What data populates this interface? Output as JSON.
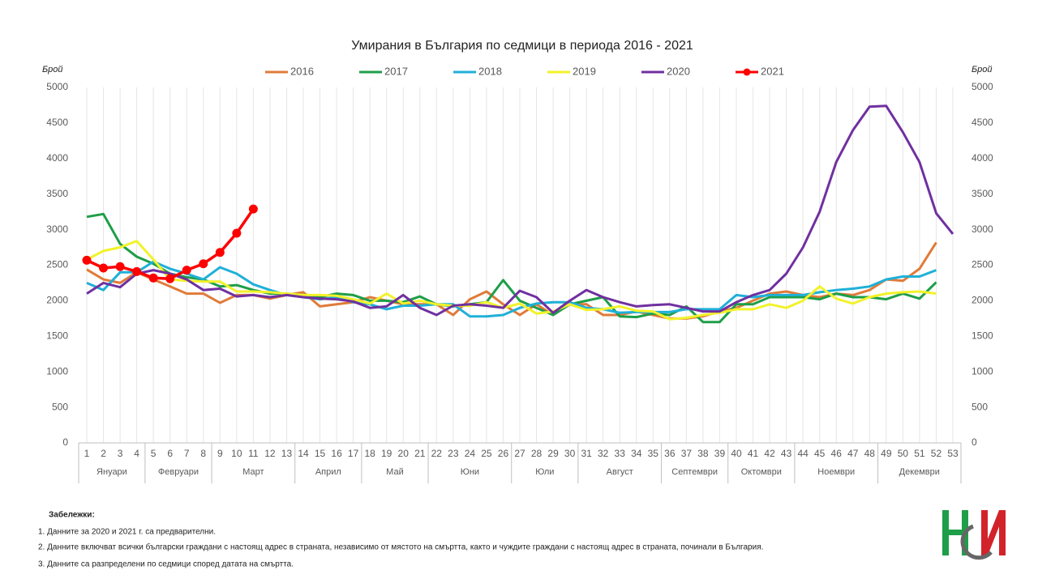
{
  "chart_data": {
    "type": "line",
    "title": "Умирания в България по седмици в периода 2016 - 2021",
    "y_label": "Брой",
    "y2_label": "Брой",
    "categories": [
      1,
      2,
      3,
      4,
      5,
      6,
      7,
      8,
      9,
      10,
      11,
      12,
      13,
      14,
      15,
      16,
      17,
      18,
      19,
      20,
      21,
      22,
      23,
      24,
      25,
      26,
      27,
      28,
      29,
      30,
      31,
      32,
      33,
      34,
      35,
      36,
      37,
      38,
      39,
      40,
      41,
      42,
      43,
      44,
      45,
      46,
      47,
      48,
      49,
      50,
      51,
      52,
      53
    ],
    "month_groups": [
      {
        "label": "Януари",
        "weeks": [
          1,
          4
        ]
      },
      {
        "label": "Февруари",
        "weeks": [
          5,
          8
        ]
      },
      {
        "label": "Март",
        "weeks": [
          9,
          13
        ]
      },
      {
        "label": "Април",
        "weeks": [
          14,
          17
        ]
      },
      {
        "label": "Май",
        "weeks": [
          18,
          21
        ]
      },
      {
        "label": "Юни",
        "weeks": [
          22,
          26
        ]
      },
      {
        "label": "Юли",
        "weeks": [
          27,
          30
        ]
      },
      {
        "label": "Август",
        "weeks": [
          31,
          35
        ]
      },
      {
        "label": "Септември",
        "weeks": [
          36,
          39
        ]
      },
      {
        "label": "Октомври",
        "weeks": [
          40,
          43
        ]
      },
      {
        "label": "Ноември",
        "weeks": [
          44,
          48
        ]
      },
      {
        "label": "Декември",
        "weeks": [
          49,
          53
        ]
      }
    ],
    "series": [
      {
        "name": "2016",
        "color": "#e07b39",
        "values": [
          2440,
          2300,
          2250,
          2400,
          2300,
          2200,
          2100,
          2100,
          1970,
          2080,
          2080,
          2030,
          2080,
          2120,
          1920,
          1950,
          1980,
          2050,
          2000,
          1950,
          1950,
          1950,
          1800,
          2020,
          2130,
          1950,
          1800,
          1950,
          1800,
          1950,
          1950,
          1800,
          1800,
          1850,
          1800,
          1750,
          1750,
          1780,
          1850,
          1900,
          2000,
          2100,
          2130,
          2080,
          2050,
          2100,
          2080,
          2150,
          2300,
          2280,
          2450,
          2820,
          null
        ]
      },
      {
        "name": "2017",
        "color": "#1e9e48",
        "values": [
          3180,
          3220,
          2800,
          2620,
          2520,
          2380,
          2330,
          2300,
          2200,
          2220,
          2150,
          2100,
          2100,
          2080,
          2050,
          2100,
          2080,
          2000,
          2000,
          1980,
          2060,
          1950,
          1920,
          1950,
          1980,
          2290,
          2000,
          1900,
          1800,
          1950,
          2000,
          2050,
          1780,
          1770,
          1820,
          1800,
          1920,
          1700,
          1700,
          1950,
          1950,
          2050,
          2050,
          2050,
          2020,
          2100,
          2050,
          2050,
          2020,
          2100,
          2030,
          2260,
          null
        ]
      },
      {
        "name": "2018",
        "color": "#1fb0d8",
        "values": [
          2250,
          2150,
          2400,
          2400,
          2550,
          2450,
          2380,
          2300,
          2470,
          2380,
          2230,
          2150,
          2080,
          2050,
          2020,
          2050,
          1980,
          1950,
          1880,
          1930,
          1930,
          1950,
          1950,
          1780,
          1780,
          1800,
          1900,
          1960,
          1980,
          1980,
          1900,
          1880,
          1830,
          1840,
          1840,
          1840,
          1880,
          1880,
          1880,
          2080,
          2050,
          2080,
          2080,
          2080,
          2120,
          2150,
          2170,
          2200,
          2300,
          2340,
          2340,
          2430,
          null
        ]
      },
      {
        "name": "2019",
        "color": "#f2f22a",
        "values": [
          2580,
          2700,
          2750,
          2840,
          2580,
          2300,
          2280,
          2270,
          2270,
          2130,
          2130,
          2120,
          2100,
          2080,
          2080,
          2070,
          2020,
          1960,
          2100,
          1960,
          2000,
          1950,
          1930,
          1930,
          1980,
          1900,
          1960,
          1820,
          1850,
          1950,
          1870,
          1880,
          1920,
          1860,
          1850,
          1740,
          1760,
          1800,
          1830,
          1880,
          1880,
          1950,
          1900,
          2000,
          2200,
          2030,
          1960,
          2050,
          2100,
          2120,
          2130,
          2100,
          null
        ]
      },
      {
        "name": "2020",
        "color": "#7030a0",
        "values": [
          2100,
          2250,
          2190,
          2380,
          2430,
          2380,
          2300,
          2150,
          2170,
          2060,
          2080,
          2050,
          2080,
          2050,
          2030,
          2020,
          1990,
          1900,
          1920,
          2080,
          1900,
          1800,
          1930,
          1950,
          1930,
          1900,
          2140,
          2050,
          1830,
          2000,
          2150,
          2050,
          1980,
          1920,
          1940,
          1950,
          1900,
          1850,
          1850,
          1980,
          2080,
          2150,
          2380,
          2750,
          3250,
          3950,
          4400,
          4730,
          4740,
          4370,
          3950,
          3230,
          2940
        ]
      },
      {
        "name": "2021",
        "color": "#ff0000",
        "markers": true,
        "values": [
          2570,
          2460,
          2480,
          2410,
          2320,
          2310,
          2430,
          2520,
          2680,
          2950,
          3290,
          null,
          null,
          null,
          null,
          null,
          null,
          null,
          null,
          null,
          null,
          null,
          null,
          null,
          null,
          null,
          null,
          null,
          null,
          null,
          null,
          null,
          null,
          null,
          null,
          null,
          null,
          null,
          null,
          null,
          null,
          null,
          null,
          null,
          null,
          null,
          null,
          null,
          null,
          null,
          null,
          null,
          null
        ]
      }
    ],
    "ylim": [
      0,
      5000
    ],
    "yticks": [
      0,
      500,
      1000,
      1500,
      2000,
      2500,
      3000,
      3500,
      4000,
      4500,
      5000
    ],
    "y2lim": [
      0,
      5000
    ],
    "y2ticks": [
      0,
      500,
      1000,
      1500,
      2000,
      2500,
      3000,
      3500,
      4000,
      4500,
      5000
    ],
    "grid": true,
    "legend": "top"
  },
  "notes_title": "Забележки:",
  "notes": [
    "1. Данните за 2020 и 2021 г. са предварителни.",
    "2. Данните включват всички български граждани с настоящ адрес в страната, независимо от мястото на смъртта, както и чуждите граждани с настоящ адрес в страната, починали в България.",
    "3. Данните са разпределени по седмици според датата на смъртта."
  ]
}
